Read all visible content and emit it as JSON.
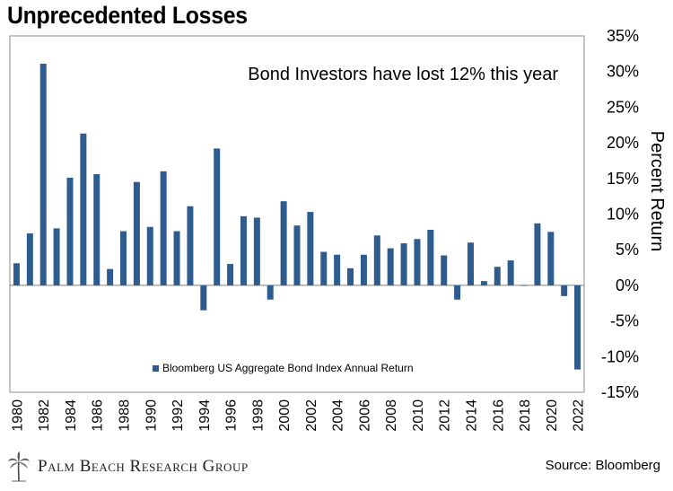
{
  "page": {
    "title": "Unprecedented Losses",
    "brand": "Palm Beach Research Group",
    "source": "Source: Bloomberg"
  },
  "colors": {
    "bar": "#2E5C8E",
    "frame": "#8C8C8C"
  },
  "chart_data": {
    "type": "bar",
    "title": "",
    "annotation": "Bond Investors have lost 12% this year",
    "ylabel": "Percent Return",
    "xlabel": "",
    "ylim": [
      -15,
      35
    ],
    "ytick_values": [
      35,
      30,
      25,
      20,
      15,
      10,
      5,
      0,
      -5,
      -10,
      -15
    ],
    "ytick_labels": [
      "35%",
      "30%",
      "25%",
      "20%",
      "15%",
      "10%",
      "5%",
      "0%",
      "-5%",
      "-10%",
      "-15%"
    ],
    "xtick_labels": [
      "1980",
      "1982",
      "1984",
      "1986",
      "1988",
      "1990",
      "1992",
      "1994",
      "1996",
      "1998",
      "2000",
      "2002",
      "2004",
      "2006",
      "2008",
      "2010",
      "2012",
      "2014",
      "2016",
      "2018",
      "2020",
      "2022"
    ],
    "y_axis_side": "right",
    "grid": false,
    "legend": {
      "placement": "bottom-center",
      "entries": [
        "Bloomberg US Aggregate Bond Index Annual Return"
      ]
    },
    "series": [
      {
        "name": "Bloomberg US Aggregate Bond Index Annual Return",
        "x": [
          1980,
          1981,
          1982,
          1983,
          1984,
          1985,
          1986,
          1987,
          1988,
          1989,
          1990,
          1991,
          1992,
          1993,
          1994,
          1995,
          1996,
          1997,
          1998,
          1999,
          2000,
          2001,
          2002,
          2003,
          2004,
          2005,
          2006,
          2007,
          2008,
          2009,
          2010,
          2011,
          2012,
          2013,
          2014,
          2015,
          2016,
          2017,
          2018,
          2019,
          2020,
          2021,
          2022
        ],
        "values": [
          3.1,
          7.3,
          31.1,
          8.0,
          15.1,
          21.3,
          15.6,
          2.3,
          7.6,
          14.5,
          8.2,
          16.0,
          7.6,
          11.1,
          -3.5,
          19.2,
          3.0,
          9.7,
          9.5,
          -2.0,
          11.8,
          8.4,
          10.3,
          4.7,
          4.3,
          2.4,
          4.3,
          7.0,
          5.2,
          5.9,
          6.5,
          7.8,
          4.2,
          -2.0,
          6.0,
          0.6,
          2.6,
          3.5,
          0.0,
          8.7,
          7.5,
          -1.5,
          -11.8
        ]
      }
    ]
  }
}
